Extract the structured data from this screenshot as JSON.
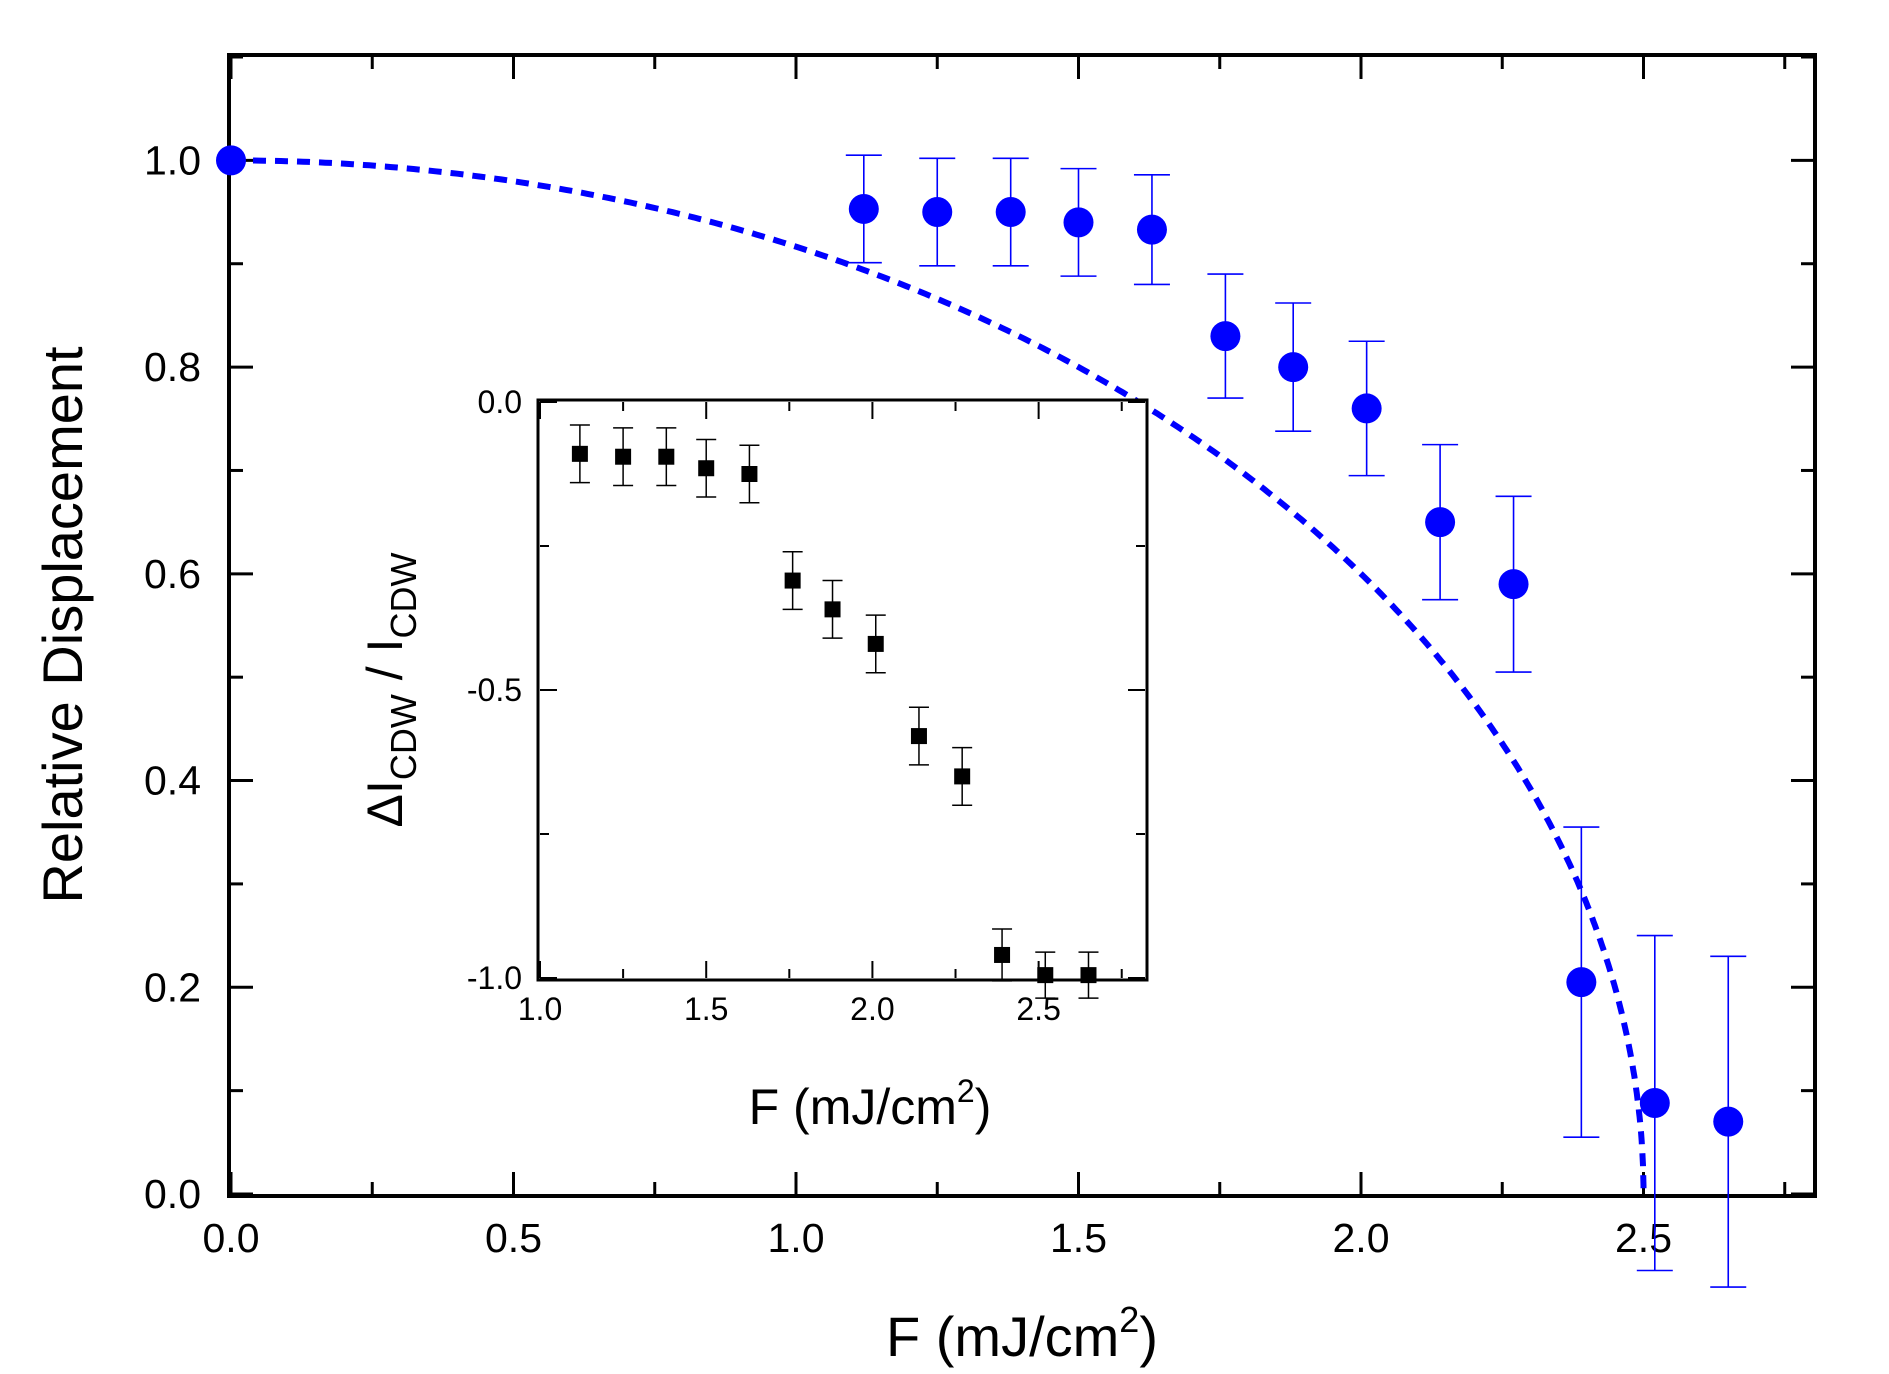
{
  "chart_data": [
    {
      "id": "main",
      "type": "scatter",
      "title": "",
      "xlabel": {
        "main": "F (mJ/cm",
        "sup": "2",
        "close": ")"
      },
      "ylabel": "Relative Displacement",
      "xlim": [
        0,
        2.8
      ],
      "ylim": [
        0,
        1.1
      ],
      "xticks": [
        0.0,
        0.5,
        1.0,
        1.5,
        2.0,
        2.5
      ],
      "xtick_labels": [
        "0.0",
        "0.5",
        "1.0",
        "1.5",
        "2.0",
        "2.5"
      ],
      "yticks": [
        0.0,
        0.2,
        0.4,
        0.6,
        0.8,
        1.0
      ],
      "ytick_labels": [
        "0.0",
        "0.2",
        "0.4",
        "0.6",
        "0.8",
        "1.0"
      ],
      "series": [
        {
          "name": "data",
          "color": "#0000ff",
          "marker": "circle",
          "x": [
            0.0,
            1.12,
            1.25,
            1.38,
            1.5,
            1.63,
            1.76,
            1.88,
            2.01,
            2.14,
            2.27,
            2.39,
            2.52,
            2.65
          ],
          "y": [
            1.0,
            0.953,
            0.95,
            0.95,
            0.94,
            0.933,
            0.83,
            0.8,
            0.76,
            0.65,
            0.59,
            0.205,
            0.088,
            0.07
          ],
          "err": [
            0.0,
            0.052,
            0.052,
            0.052,
            0.052,
            0.053,
            0.06,
            0.062,
            0.065,
            0.075,
            0.085,
            0.15,
            0.162,
            0.16
          ]
        },
        {
          "name": "fit",
          "color": "#0000ff",
          "style": "dashed",
          "function": "sqrt(1-(F/Fc)^2)",
          "Fc": 2.5
        }
      ]
    },
    {
      "id": "inset",
      "type": "scatter",
      "xlabel": {
        "main": "F (mJ/cm",
        "sup": "2",
        "close": ")"
      },
      "ylabel": {
        "delta": "Δ",
        "I1": "I",
        "sub1": "CDW",
        "sep": " / ",
        "I2": "I",
        "sub2": "CDW"
      },
      "xlim": [
        1.0,
        2.82
      ],
      "ylim": [
        -1.0,
        0.0
      ],
      "xticks": [
        1.0,
        1.5,
        2.0,
        2.5
      ],
      "xtick_labels": [
        "1.0",
        "1.5",
        "2.0",
        "2.5"
      ],
      "yticks": [
        0.0,
        -0.5,
        -1.0
      ],
      "ytick_labels": [
        "0.0",
        "-0.5",
        "-1.0"
      ],
      "series": [
        {
          "name": "data",
          "color": "#000000",
          "marker": "square",
          "x": [
            1.12,
            1.25,
            1.38,
            1.5,
            1.63,
            1.76,
            1.88,
            2.01,
            2.14,
            2.27,
            2.39,
            2.52,
            2.65
          ],
          "y": [
            -0.09,
            -0.095,
            -0.095,
            -0.115,
            -0.125,
            -0.31,
            -0.36,
            -0.42,
            -0.58,
            -0.65,
            -0.96,
            -0.995,
            -0.995
          ],
          "err": [
            0.05,
            0.05,
            0.05,
            0.05,
            0.05,
            0.05,
            0.05,
            0.05,
            0.05,
            0.05,
            0.045,
            0.04,
            0.04
          ]
        }
      ]
    }
  ]
}
